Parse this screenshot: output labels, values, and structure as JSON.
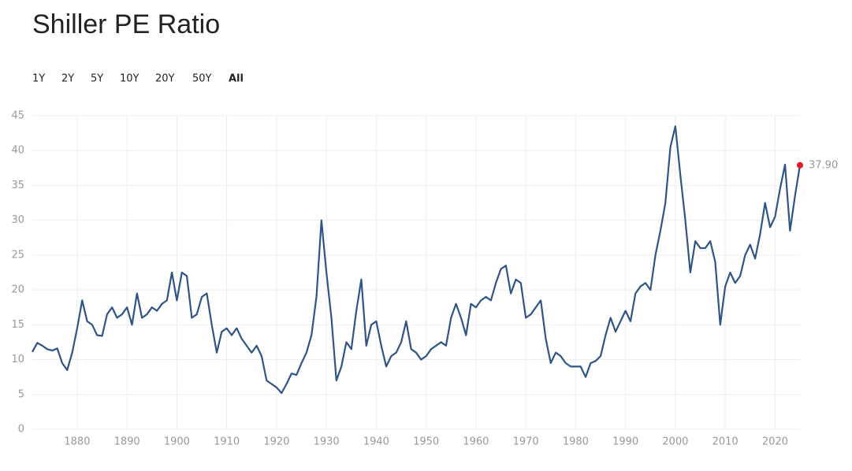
{
  "chart_data": {
    "type": "line",
    "title": "Shiller PE Ratio",
    "range_buttons": [
      "1Y",
      "2Y",
      "5Y",
      "10Y",
      "20Y",
      "50Y",
      "All"
    ],
    "x": [
      1871,
      1872,
      1873,
      1874,
      1875,
      1876,
      1877,
      1878,
      1879,
      1880,
      1881,
      1882,
      1883,
      1884,
      1885,
      1886,
      1887,
      1888,
      1889,
      1890,
      1891,
      1892,
      1893,
      1894,
      1895,
      1896,
      1897,
      1898,
      1899,
      1900,
      1901,
      1902,
      1903,
      1904,
      1905,
      1906,
      1907,
      1908,
      1909,
      1910,
      1911,
      1912,
      1913,
      1914,
      1915,
      1916,
      1917,
      1918,
      1919,
      1920,
      1921,
      1922,
      1923,
      1924,
      1925,
      1926,
      1927,
      1928,
      1929,
      1930,
      1931,
      1932,
      1933,
      1934,
      1935,
      1936,
      1937,
      1938,
      1939,
      1940,
      1941,
      1942,
      1943,
      1944,
      1945,
      1946,
      1947,
      1948,
      1949,
      1950,
      1951,
      1952,
      1953,
      1954,
      1955,
      1956,
      1957,
      1958,
      1959,
      1960,
      1961,
      1962,
      1963,
      1964,
      1965,
      1966,
      1967,
      1968,
      1969,
      1970,
      1971,
      1972,
      1973,
      1974,
      1975,
      1976,
      1977,
      1978,
      1979,
      1980,
      1981,
      1982,
      1983,
      1984,
      1985,
      1986,
      1987,
      1988,
      1989,
      1990,
      1991,
      1992,
      1993,
      1994,
      1995,
      1996,
      1997,
      1998,
      1999,
      2000,
      2001,
      2002,
      2003,
      2004,
      2005,
      2006,
      2007,
      2008,
      2009,
      2010,
      2011,
      2012,
      2013,
      2014,
      2015,
      2016,
      2017,
      2018,
      2019,
      2020,
      2021,
      2022,
      2023,
      2024,
      2025
    ],
    "series": [
      {
        "name": "Shiller PE Ratio",
        "color": "#2f5486",
        "values": [
          11.1,
          12.4,
          12.0,
          11.5,
          11.3,
          11.6,
          9.5,
          8.5,
          11.0,
          14.5,
          18.5,
          15.5,
          15.0,
          13.5,
          13.4,
          16.5,
          17.5,
          16.0,
          16.5,
          17.5,
          15.0,
          19.5,
          16.0,
          16.5,
          17.5,
          17.0,
          18.0,
          18.5,
          22.5,
          18.5,
          22.5,
          22.0,
          16.0,
          16.5,
          19.0,
          19.5,
          15.0,
          11.0,
          14.0,
          14.5,
          13.5,
          14.5,
          13.0,
          12.0,
          11.0,
          12.0,
          10.5,
          7.0,
          6.5,
          6.0,
          5.2,
          6.5,
          8.0,
          7.8,
          9.5,
          11.0,
          13.5,
          19.0,
          30.0,
          22.5,
          16.0,
          7.0,
          9.0,
          12.5,
          11.5,
          17.0,
          21.5,
          12.0,
          15.0,
          15.5,
          12.0,
          9.0,
          10.5,
          11.0,
          12.5,
          15.5,
          11.5,
          11.0,
          10.0,
          10.5,
          11.5,
          12.0,
          12.5,
          12.0,
          16.0,
          18.0,
          16.0,
          13.5,
          18.0,
          17.5,
          18.5,
          19.0,
          18.5,
          21.0,
          23.0,
          23.5,
          19.5,
          21.5,
          21.0,
          16.0,
          16.5,
          17.5,
          18.5,
          13.0,
          9.5,
          11.0,
          10.5,
          9.5,
          9.0,
          9.0,
          9.0,
          7.5,
          9.5,
          9.8,
          10.5,
          13.5,
          16.0,
          14.0,
          15.5,
          17.0,
          15.5,
          19.5,
          20.5,
          21.0,
          20.0,
          25.0,
          28.5,
          32.5,
          40.5,
          43.5,
          36.5,
          30.0,
          22.5,
          27.0,
          26.0,
          26.0,
          27.0,
          24.0,
          15.0,
          20.5,
          22.5,
          21.0,
          22.0,
          25.0,
          26.5,
          24.5,
          28.0,
          32.5,
          29.0,
          30.5,
          34.5,
          38.0,
          28.5,
          33.5,
          37.9
        ]
      }
    ],
    "end_label": "37.90",
    "end_marker_color": "#e0192b",
    "xlim": [
      1871,
      2025
    ],
    "xticks": [
      1880,
      1890,
      1900,
      1910,
      1920,
      1930,
      1940,
      1950,
      1960,
      1970,
      1980,
      1990,
      2000,
      2010,
      2020
    ],
    "ylim": [
      0,
      45
    ],
    "yticks": [
      0,
      5,
      10,
      15,
      20,
      25,
      30,
      35,
      40,
      45
    ],
    "grid": true
  }
}
